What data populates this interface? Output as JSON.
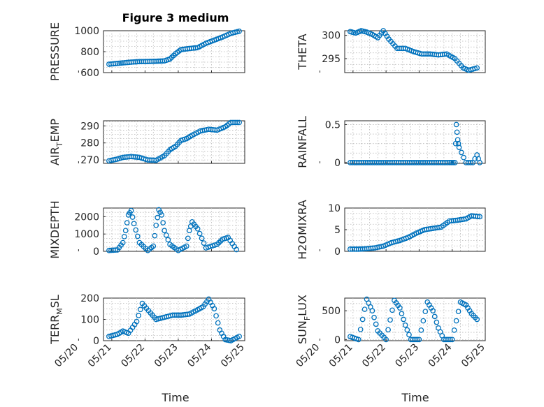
{
  "figure": {
    "title": "Figure 3 medium",
    "marker_color": "#0072BD",
    "date_tick_labels": [
      "05/20",
      "05/21",
      "05/22",
      "05/23",
      "05/24",
      "05/25"
    ],
    "xlabel": "Time"
  },
  "chart_data": [
    {
      "type": "scatter",
      "ylabel": "PRESSURE",
      "ylim": [
        600,
        1000
      ],
      "yticks": [
        600,
        800,
        1000
      ],
      "ytick_labels": [
        "600",
        "800",
        "1000"
      ],
      "x_range": [
        "05/20 18:00",
        "05/25 00:00"
      ],
      "x": [
        "05/20 22:00",
        "05/21 04:00",
        "05/21 08:00",
        "05/21 14:00",
        "05/21 20:00",
        "05/22 02:00",
        "05/22 08:00",
        "05/22 14:00",
        "05/22 18:00",
        "05/22 22:00",
        "05/23 02:00",
        "05/23 08:00",
        "05/23 14:00",
        "05/23 20:00",
        "05/24 02:00",
        "05/24 08:00",
        "05/24 14:00",
        "05/24 20:00"
      ],
      "y": [
        680,
        688,
        693,
        700,
        705,
        706,
        708,
        712,
        730,
        780,
        820,
        830,
        838,
        880,
        910,
        940,
        975,
        995
      ]
    },
    {
      "type": "scatter",
      "ylabel": "THETA",
      "ylim": [
        292,
        301
      ],
      "yticks": [
        295,
        300
      ],
      "ytick_labels": [
        "295",
        "300"
      ],
      "x_range": [
        "05/20 18:00",
        "05/25 00:00"
      ],
      "x": [
        "05/20 22:00",
        "05/21 02:00",
        "05/21 06:00",
        "05/21 10:00",
        "05/21 14:00",
        "05/21 18:00",
        "05/21 22:00",
        "05/22 02:00",
        "05/22 08:00",
        "05/22 14:00",
        "05/22 20:00",
        "05/23 02:00",
        "05/23 08:00",
        "05/23 14:00",
        "05/23 20:00",
        "05/24 02:00",
        "05/24 08:00",
        "05/24 12:00",
        "05/24 18:00"
      ],
      "y": [
        300.8,
        300.5,
        301.0,
        300.7,
        300.2,
        299.5,
        301.0,
        299.2,
        297.2,
        297.2,
        296.5,
        296.0,
        296.0,
        295.8,
        296.0,
        295.0,
        293.0,
        292.5,
        293.0
      ]
    },
    {
      "type": "scatter",
      "ylabel_main": "AIR",
      "ylabel_sub": "T",
      "ylabel_rest": "EMP",
      "ylim": [
        268,
        293
      ],
      "yticks": [
        270,
        280,
        290
      ],
      "ytick_labels": [
        "270",
        "280",
        "290"
      ],
      "x_range": [
        "05/20 18:00",
        "05/25 00:00"
      ],
      "x": [
        "05/20 22:00",
        "05/21 04:00",
        "05/21 08:00",
        "05/21 14:00",
        "05/21 20:00",
        "05/22 02:00",
        "05/22 08:00",
        "05/22 14:00",
        "05/22 18:00",
        "05/22 22:00",
        "05/23 02:00",
        "05/23 06:00",
        "05/23 10:00",
        "05/23 16:00",
        "05/23 22:00",
        "05/24 04:00",
        "05/24 10:00",
        "05/24 14:00",
        "05/24 20:00"
      ],
      "y": [
        269.5,
        270.5,
        271.5,
        272.0,
        271.5,
        270.0,
        269.8,
        272.5,
        276.0,
        278.0,
        281.5,
        282.5,
        284.5,
        287.0,
        288.0,
        287.5,
        289.5,
        292.0,
        292.0
      ]
    },
    {
      "type": "scatter",
      "ylabel": "RAINFALL",
      "ylim": [
        -0.01,
        0.55
      ],
      "yticks": [
        0,
        0.5
      ],
      "ytick_labels": [
        "0",
        "0.5"
      ],
      "x_range": [
        "05/20 18:00",
        "05/25 00:00"
      ],
      "x": [
        "05/20 22:00",
        "05/21 06:00",
        "05/21 14:00",
        "05/21 22:00",
        "05/22 06:00",
        "05/22 14:00",
        "05/22 22:00",
        "05/23 06:00",
        "05/23 14:00",
        "05/23 22:00",
        "05/24 02:00",
        "05/24 03:00",
        "05/24 04:00",
        "05/24 05:00",
        "05/24 10:00",
        "05/24 15:00",
        "05/24 18:00",
        "05/24 20:00"
      ],
      "y": [
        0,
        0,
        0,
        0,
        0,
        0,
        0,
        0,
        0,
        0,
        0,
        0.5,
        0.3,
        0.2,
        0,
        0,
        0.1,
        0
      ]
    },
    {
      "type": "scatter",
      "ylabel": "MIXDEPTH",
      "ylim": [
        0,
        2500
      ],
      "yticks": [
        0,
        1000,
        2000
      ],
      "ytick_labels": [
        "0",
        "1000",
        "2000"
      ],
      "x_range": [
        "05/20 18:00",
        "05/25 00:00"
      ],
      "x": [
        "05/20 22:00",
        "05/21 04:00",
        "05/21 08:00",
        "05/21 10:00",
        "05/21 12:00",
        "05/21 14:00",
        "05/21 16:00",
        "05/21 20:00",
        "05/22 02:00",
        "05/22 06:00",
        "05/22 08:00",
        "05/22 10:00",
        "05/22 12:00",
        "05/22 14:00",
        "05/22 18:00",
        "05/23 00:00",
        "05/23 06:00",
        "05/23 08:00",
        "05/23 10:00",
        "05/23 14:00",
        "05/23 20:00",
        "05/24 04:00",
        "05/24 08:00",
        "05/24 12:00",
        "05/24 18:00"
      ],
      "y": [
        50,
        80,
        500,
        1200,
        2100,
        2350,
        1600,
        500,
        50,
        300,
        1500,
        2400,
        2100,
        1200,
        400,
        50,
        300,
        1200,
        1700,
        1300,
        200,
        400,
        700,
        800,
        100
      ]
    },
    {
      "type": "scatter",
      "ylabel": "H2OMIXRA",
      "ylim": [
        0,
        10
      ],
      "yticks": [
        0,
        5,
        10
      ],
      "ytick_labels": [
        "0",
        "5",
        "10"
      ],
      "x_range": [
        "05/20 18:00",
        "05/25 00:00"
      ],
      "x": [
        "05/20 22:00",
        "05/21 04:00",
        "05/21 10:00",
        "05/21 16:00",
        "05/21 22:00",
        "05/22 04:00",
        "05/22 10:00",
        "05/22 16:00",
        "05/22 22:00",
        "05/23 04:00",
        "05/23 10:00",
        "05/23 16:00",
        "05/23 22:00",
        "05/24 04:00",
        "05/24 10:00",
        "05/24 14:00",
        "05/24 20:00"
      ],
      "y": [
        0.5,
        0.5,
        0.6,
        0.8,
        1.2,
        2.0,
        2.5,
        3.2,
        4.2,
        5.0,
        5.3,
        5.6,
        7.0,
        7.2,
        7.5,
        8.2,
        8.0
      ]
    },
    {
      "type": "scatter",
      "ylabel_main": "TERR",
      "ylabel_sub": "M",
      "ylabel_rest": "SL",
      "ylim": [
        0,
        200
      ],
      "yticks": [
        0,
        100,
        200
      ],
      "ytick_labels": [
        "0",
        "100",
        "200"
      ],
      "x_range": [
        "05/20 18:00",
        "05/25 00:00"
      ],
      "x": [
        "05/20 22:00",
        "05/21 04:00",
        "05/21 08:00",
        "05/21 12:00",
        "05/21 18:00",
        "05/21 22:00",
        "05/22 04:00",
        "05/22 08:00",
        "05/22 14:00",
        "05/22 20:00",
        "05/23 02:00",
        "05/23 08:00",
        "05/23 14:00",
        "05/23 18:00",
        "05/23 22:00",
        "05/24 02:00",
        "05/24 06:00",
        "05/24 10:00",
        "05/24 14:00",
        "05/24 20:00"
      ],
      "y": [
        20,
        30,
        45,
        35,
        90,
        175,
        130,
        100,
        110,
        120,
        120,
        125,
        145,
        160,
        195,
        150,
        50,
        5,
        0,
        20
      ]
    },
    {
      "type": "scatter",
      "ylabel_main": "SUN",
      "ylabel_sub": "F",
      "ylabel_rest": "LUX",
      "ylim": [
        -20,
        720
      ],
      "yticks": [
        0,
        500
      ],
      "ytick_labels": [
        "0",
        "500"
      ],
      "x_range": [
        "05/20 18:00",
        "05/25 00:00"
      ],
      "x": [
        "05/20 22:00",
        "05/21 04:00",
        "05/21 10:00",
        "05/21 14:00",
        "05/21 18:00",
        "05/22 00:00",
        "05/22 06:00",
        "05/22 10:00",
        "05/22 14:00",
        "05/22 18:00",
        "05/23 00:00",
        "05/23 06:00",
        "05/23 10:00",
        "05/23 14:00",
        "05/23 18:00",
        "05/24 00:00",
        "05/24 06:00",
        "05/24 10:00",
        "05/24 14:00",
        "05/24 18:00"
      ],
      "y": [
        50,
        0,
        700,
        500,
        150,
        0,
        680,
        550,
        250,
        0,
        0,
        650,
        500,
        200,
        0,
        0,
        650,
        600,
        450,
        350
      ]
    }
  ]
}
